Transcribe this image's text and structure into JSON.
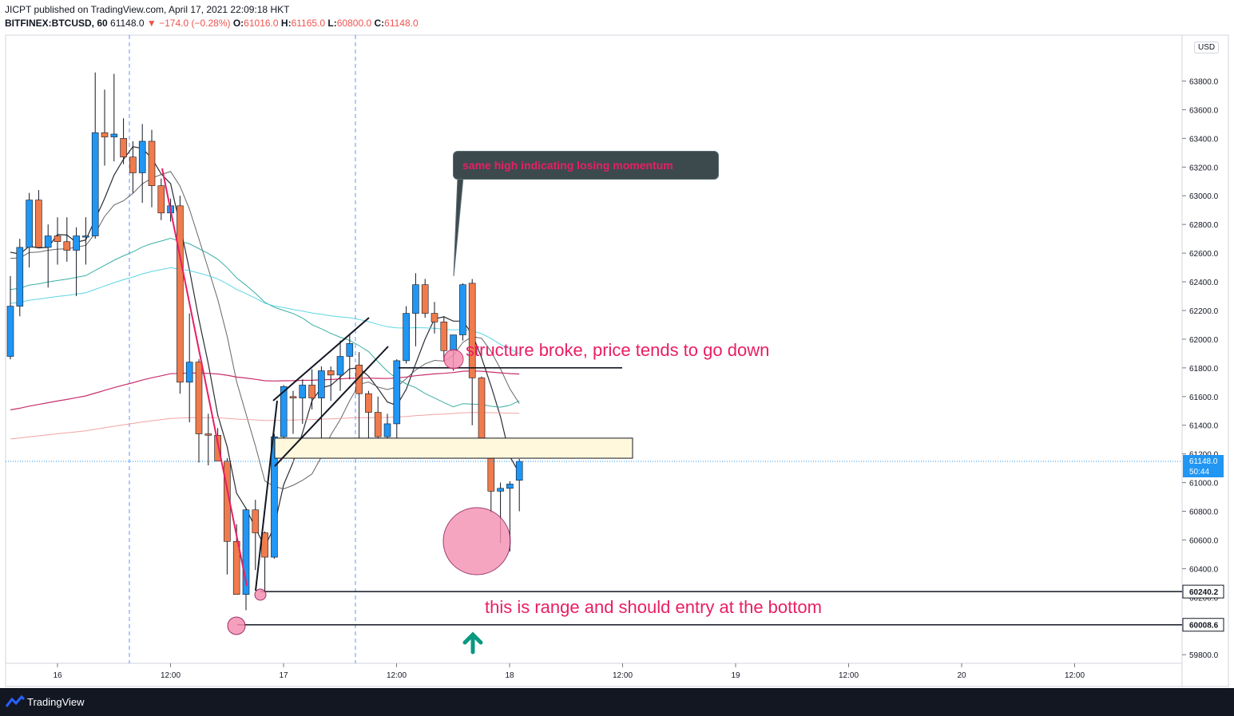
{
  "header": {
    "line1": "JICPT published on TradingView.com, April 17, 2021 22:09:18 HKT",
    "symbol": "BITFINEX:BTCUSD, 60",
    "last": "61148.0",
    "change": "▼ −174.0 (−0.28%)",
    "o_label": "O:",
    "o_val": "61016.0",
    "h_label": "H:",
    "h_val": "61165.0",
    "l_label": "L:",
    "l_val": "60800.0",
    "c_label": "C:",
    "c_val": "61148.0"
  },
  "price_axis": {
    "currency": "USD",
    "ticks": [
      "63800.0",
      "63600.0",
      "63400.0",
      "63200.0",
      "63000.0",
      "62800.0",
      "62600.0",
      "62400.0",
      "62200.0",
      "62000.0",
      "61800.0",
      "61600.0",
      "61400.0",
      "61200.0",
      "61000.0",
      "60800.0",
      "60600.0",
      "60400.0",
      "60200.0",
      "59800.0"
    ],
    "last_price_label": "61148.0",
    "countdown_label": "50:44",
    "level_labels": [
      "60240.2",
      "60008.6"
    ]
  },
  "time_axis": {
    "ticks": [
      "16",
      "12:00",
      "17",
      "12:00",
      "18",
      "12:00",
      "19",
      "12:00",
      "20",
      "12:00"
    ]
  },
  "annotations": {
    "callout": "same high indicating losing momentum",
    "structure": "structure broke, price tends to go down",
    "range": "this is range and should entry at the bottom"
  },
  "footer": {
    "brand": "TradingView"
  },
  "colors": {
    "up": "#2196f3",
    "down": "#f07b4c",
    "annotation": "#e91e63",
    "arrow": "#089981",
    "zone": "#fff8dc"
  },
  "chart_data": {
    "type": "candlestick",
    "interval": "60",
    "ylim": [
      59740,
      64120
    ],
    "x_ticks": [
      "16",
      "12:00",
      "17",
      "12:00",
      "18",
      "12:00",
      "19",
      "12:00",
      "20",
      "12:00"
    ],
    "candles": [
      {
        "o": 61880,
        "h": 62440,
        "l": 61860,
        "c": 62230
      },
      {
        "o": 62230,
        "h": 62700,
        "l": 62160,
        "c": 62640
      },
      {
        "o": 62640,
        "h": 63020,
        "l": 62500,
        "c": 62970
      },
      {
        "o": 62970,
        "h": 63040,
        "l": 62650,
        "c": 62640
      },
      {
        "o": 62640,
        "h": 62800,
        "l": 62360,
        "c": 62720
      },
      {
        "o": 62720,
        "h": 62850,
        "l": 62520,
        "c": 62680
      },
      {
        "o": 62680,
        "h": 62850,
        "l": 62540,
        "c": 62620
      },
      {
        "o": 62620,
        "h": 62780,
        "l": 62300,
        "c": 62720
      },
      {
        "o": 62720,
        "h": 62850,
        "l": 62520,
        "c": 62720
      },
      {
        "o": 62720,
        "h": 63860,
        "l": 62700,
        "c": 63440
      },
      {
        "o": 63440,
        "h": 63740,
        "l": 63210,
        "c": 63410
      },
      {
        "o": 63410,
        "h": 63850,
        "l": 63240,
        "c": 63430
      },
      {
        "o": 63400,
        "h": 63540,
        "l": 63220,
        "c": 63270
      },
      {
        "o": 63270,
        "h": 63380,
        "l": 63020,
        "c": 63160
      },
      {
        "o": 63160,
        "h": 63500,
        "l": 62950,
        "c": 63380
      },
      {
        "o": 63380,
        "h": 63460,
        "l": 62920,
        "c": 63070
      },
      {
        "o": 63070,
        "h": 63120,
        "l": 62830,
        "c": 62880
      },
      {
        "o": 62880,
        "h": 62980,
        "l": 62820,
        "c": 62930
      },
      {
        "o": 62930,
        "h": 63000,
        "l": 61620,
        "c": 61700
      },
      {
        "o": 61700,
        "h": 62180,
        "l": 61420,
        "c": 61840
      },
      {
        "o": 61840,
        "h": 61860,
        "l": 61140,
        "c": 61340
      },
      {
        "o": 61340,
        "h": 61480,
        "l": 61120,
        "c": 61330
      },
      {
        "o": 61330,
        "h": 61380,
        "l": 61160,
        "c": 61150
      },
      {
        "o": 61150,
        "h": 61170,
        "l": 60360,
        "c": 60590
      },
      {
        "o": 60590,
        "h": 60710,
        "l": 60220,
        "c": 60220
      },
      {
        "o": 60220,
        "h": 60820,
        "l": 60110,
        "c": 60810
      },
      {
        "o": 60810,
        "h": 60880,
        "l": 60390,
        "c": 60650
      },
      {
        "o": 60650,
        "h": 60660,
        "l": 60240,
        "c": 60480
      },
      {
        "o": 60480,
        "h": 61340,
        "l": 60470,
        "c": 61320
      },
      {
        "o": 61320,
        "h": 61680,
        "l": 61300,
        "c": 61670
      },
      {
        "o": 61600,
        "h": 61640,
        "l": 61340,
        "c": 61590
      },
      {
        "o": 61590,
        "h": 61720,
        "l": 61410,
        "c": 61680
      },
      {
        "o": 61680,
        "h": 61790,
        "l": 61510,
        "c": 61590
      },
      {
        "o": 61590,
        "h": 61810,
        "l": 61300,
        "c": 61780
      },
      {
        "o": 61780,
        "h": 61810,
        "l": 61570,
        "c": 61750
      },
      {
        "o": 61750,
        "h": 61990,
        "l": 61640,
        "c": 61880
      },
      {
        "o": 61880,
        "h": 62040,
        "l": 61720,
        "c": 61970
      },
      {
        "o": 61820,
        "h": 61910,
        "l": 61300,
        "c": 61620
      },
      {
        "o": 61620,
        "h": 61640,
        "l": 61300,
        "c": 61490
      },
      {
        "o": 61490,
        "h": 61600,
        "l": 61270,
        "c": 61320
      },
      {
        "o": 61320,
        "h": 61480,
        "l": 61300,
        "c": 61410
      },
      {
        "o": 61410,
        "h": 61860,
        "l": 61280,
        "c": 61850
      },
      {
        "o": 61850,
        "h": 62230,
        "l": 61830,
        "c": 62180
      },
      {
        "o": 62180,
        "h": 62460,
        "l": 61950,
        "c": 62380
      },
      {
        "o": 62380,
        "h": 62420,
        "l": 62150,
        "c": 62180
      },
      {
        "o": 62180,
        "h": 62260,
        "l": 62040,
        "c": 62120
      },
      {
        "o": 62120,
        "h": 62160,
        "l": 61850,
        "c": 61920
      },
      {
        "o": 61920,
        "h": 62000,
        "l": 61780,
        "c": 62030
      },
      {
        "o": 62030,
        "h": 62390,
        "l": 61990,
        "c": 62380
      },
      {
        "o": 62390,
        "h": 62420,
        "l": 61400,
        "c": 61730
      },
      {
        "o": 61730,
        "h": 61740,
        "l": 61190,
        "c": 61290
      },
      {
        "o": 61290,
        "h": 61300,
        "l": 60790,
        "c": 60940
      },
      {
        "o": 60940,
        "h": 61000,
        "l": 60580,
        "c": 60960
      },
      {
        "o": 60960,
        "h": 61010,
        "l": 60520,
        "c": 60990
      },
      {
        "o": 61016,
        "h": 61165,
        "l": 60800,
        "c": 61148
      }
    ],
    "horizontal_levels": [
      60240.2,
      60008.6,
      61800
    ],
    "zone": [
      61170,
      61310
    ]
  }
}
